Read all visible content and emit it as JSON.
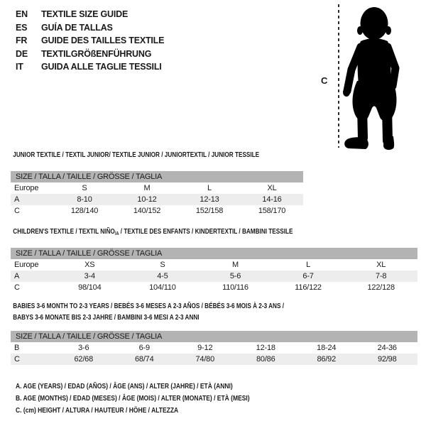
{
  "page": {
    "background": "#ffffff",
    "text_color": "#1a1a1a",
    "size_bar_color": "#b3b3b3",
    "shaded_row_color": "#ededed"
  },
  "header": {
    "languages": [
      {
        "code": "EN",
        "label": "TEXTILE SIZE GUIDE"
      },
      {
        "code": "ES",
        "label": "GUÍA DE TALLAS"
      },
      {
        "code": "FR",
        "label": "GUIDE DES TAILLES TEXTILE"
      },
      {
        "code": "DE",
        "label": "TEXTILGRÖßENFÜHRUNG"
      },
      {
        "code": "IT",
        "label": "GUIDA ALLE TAGLIE TESSILI"
      }
    ],
    "figure": {
      "label": "C",
      "description": "toddler silhouette with dashed height line"
    }
  },
  "tables": [
    {
      "title": "JUNIOR TEXTILE / TEXTIL JUNIOR/ TEXTILE JUNIOR / JUNIORTEXTIL / JUNIOR TESSILE",
      "size_header": "SIZE / TALLA / TAILLE / GRÖSSE / TAGLIA",
      "rows": [
        {
          "cells": [
            "Europe",
            "S",
            "M",
            "L",
            "XL"
          ],
          "shaded": false
        },
        {
          "cells": [
            "A",
            "8-10",
            "10-12",
            "12-13",
            "14-16"
          ],
          "shaded": true
        },
        {
          "cells": [
            "C",
            "128/140",
            "140/152",
            "152/158",
            "158/170"
          ],
          "shaded": false
        }
      ]
    },
    {
      "title_pre": "CHILDREN'S TEXTILE / TEXTIL NIÑO",
      "title_sub": "/A",
      "title_post": " / TEXTILE DES ENFANTS / KINDERTEXTIL / BAMBINI TESSILE",
      "size_header": "SIZE / TALLA / TAILLE / GRÖSSE / TAGLIA",
      "rows": [
        {
          "cells": [
            "Europe",
            "XS",
            "S",
            "M",
            "L",
            "XL"
          ],
          "shaded": false
        },
        {
          "cells": [
            "A",
            "3-4",
            "4-5",
            "5-6",
            "6-7",
            "7-8"
          ],
          "shaded": true
        },
        {
          "cells": [
            "C",
            "98/104",
            "104/110",
            "110/116",
            "116/122",
            "122/128"
          ],
          "shaded": false
        }
      ]
    },
    {
      "title_line1": "BABIES 3-6 MONTH TO 2-3 YEARS / BEBÉS 3-6 MESES A 2-3 AÑOS / BÉBÉS 3-6 MOIS À 2-3 ANS /",
      "title_line2": "BABYS 3-6 MONATE BIS 2-3 JAHRE / BAMBINI 3-6 MESI A 2-3 ANNI",
      "size_header": "SIZE / TALLA / TAILLE / GRÖSSE / TAGLIA",
      "rows": [
        {
          "cells": [
            "B",
            "3-6",
            "6-9",
            "9-12",
            "12-18",
            "18-24",
            "24-36"
          ],
          "shaded": false
        },
        {
          "cells": [
            "C",
            "62/68",
            "68/74",
            "74/80",
            "80/86",
            "86/92",
            "92/98"
          ],
          "shaded": true
        }
      ]
    }
  ],
  "footnotes": [
    "A. AGE (YEARS) / EDAD (AÑOS) / ÂGE (ANS) / ALTER (JAHRE) / ETÀ (ANNI)",
    "B. AGE (MONTHS) / EDAD (MESES) / ÂGE (MOIS) / ALTER (MONATE) / ETÀ (MESI)",
    "C. (cm) HEIGHT / ALTURA / HAUTEUR / HÖHE / ALTEZZA"
  ]
}
